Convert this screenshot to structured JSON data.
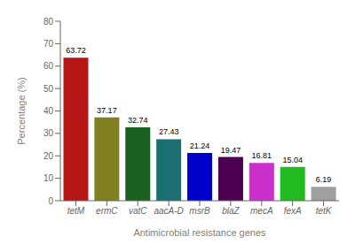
{
  "chart_data": {
    "type": "bar",
    "categories": [
      "tetM",
      "ermC",
      "vatC",
      "aacA-D",
      "msrB",
      "blaZ",
      "mecA",
      "fexA",
      "tetK"
    ],
    "values": [
      63.72,
      37.17,
      32.74,
      27.43,
      21.24,
      19.47,
      16.81,
      15.04,
      6.19
    ],
    "colors": [
      "#b41515",
      "#808020",
      "#1a6020",
      "#1a7070",
      "#0000cc",
      "#4b0050",
      "#cc30cc",
      "#22bb22",
      "#a0a0a0"
    ],
    "xlabel": "Antimicrobial resistance genes",
    "ylabel": "Percentage (%)",
    "ylim": [
      0,
      80
    ],
    "yticks": [
      0,
      10,
      20,
      30,
      40,
      50,
      60,
      70,
      80
    ],
    "grid": false,
    "data_labels": true
  }
}
